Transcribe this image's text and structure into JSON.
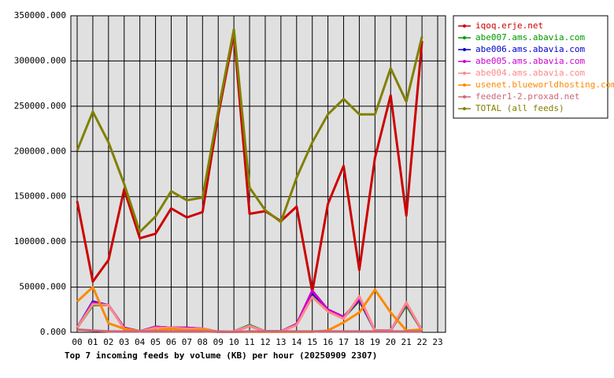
{
  "chart_data": {
    "type": "line",
    "xlabel": "Top 7 incoming feeds by volume (KB) per hour (20250909 2307)",
    "categories": [
      "00",
      "01",
      "02",
      "03",
      "04",
      "05",
      "06",
      "07",
      "08",
      "09",
      "10",
      "11",
      "12",
      "13",
      "14",
      "15",
      "16",
      "17",
      "18",
      "19",
      "20",
      "21",
      "22",
      "23"
    ],
    "ylim": [
      0,
      350000
    ],
    "yticks": [
      {
        "value": 0,
        "label": "0.000"
      },
      {
        "value": 50000,
        "label": "50000.000"
      },
      {
        "value": 100000,
        "label": "100000.000"
      },
      {
        "value": 150000,
        "label": "150000.000"
      },
      {
        "value": 200000,
        "label": "200000.000"
      },
      {
        "value": 250000,
        "label": "250000.000"
      },
      {
        "value": 300000,
        "label": "300000.000"
      },
      {
        "value": 350000,
        "label": "350000.000"
      }
    ],
    "grid": true,
    "legend": "right",
    "series": [
      {
        "name": "iqoq.erje.net",
        "color": "#cc0000",
        "values": [
          145000,
          56000,
          80000,
          158000,
          104000,
          109000,
          137000,
          127000,
          133000,
          240000,
          330000,
          131000,
          134000,
          123000,
          139000,
          45000,
          142000,
          184000,
          69000,
          193000,
          262000,
          129000,
          322000,
          null
        ]
      },
      {
        "name": "abe007.ams.abavia.com",
        "color": "#009900",
        "values": [
          5000,
          30000,
          30000,
          5000,
          1000,
          6000,
          5000,
          4000,
          4000,
          500,
          1000,
          8000,
          1000,
          1000,
          9000,
          41000,
          24000,
          16000,
          35000,
          2000,
          2000,
          30000,
          2000,
          null
        ]
      },
      {
        "name": "abe006.ams.abavia.com",
        "color": "#0000cc",
        "values": [
          5000,
          34000,
          30000,
          5000,
          1000,
          6000,
          5000,
          5000,
          4000,
          500,
          1000,
          7000,
          1000,
          1000,
          9000,
          44000,
          25000,
          17000,
          36000,
          2000,
          2000,
          32000,
          2000,
          null
        ]
      },
      {
        "name": "abe005.ams.abavia.com",
        "color": "#cc00cc",
        "values": [
          5000,
          33000,
          30000,
          5000,
          1000,
          6000,
          5000,
          5000,
          4000,
          500,
          1000,
          7000,
          1000,
          1000,
          9000,
          46000,
          25000,
          17000,
          37000,
          2000,
          2000,
          32000,
          2000,
          null
        ]
      },
      {
        "name": "abe004.ams.abavia.com",
        "color": "#ff8888",
        "values": [
          5000,
          31000,
          30000,
          4000,
          1000,
          5000,
          5000,
          4000,
          4000,
          500,
          1000,
          7000,
          1000,
          1000,
          8000,
          39000,
          23000,
          15000,
          40000,
          2000,
          2000,
          33000,
          2000,
          null
        ]
      },
      {
        "name": "usenet.blueworldhosting.com",
        "color": "#ff8800",
        "values": [
          34000,
          50000,
          10000,
          4000,
          1000,
          2000,
          4000,
          2000,
          3000,
          500,
          500,
          500,
          500,
          500,
          500,
          500,
          2000,
          11000,
          22000,
          47000,
          22000,
          2000,
          3000,
          null
        ]
      },
      {
        "name": "feeder1-2.proxad.net",
        "color": "#cc6677",
        "values": [
          3000,
          2000,
          1000,
          1000,
          1000,
          1000,
          1000,
          1000,
          1000,
          500,
          500,
          1000,
          1000,
          1000,
          1000,
          1000,
          1000,
          1000,
          1000,
          1000,
          1000,
          1000,
          1000,
          null
        ]
      },
      {
        "name": "TOTAL (all feeds)",
        "color": "#808000",
        "values": [
          201000,
          244000,
          210000,
          164000,
          111000,
          128000,
          156000,
          146000,
          149000,
          245000,
          335000,
          160000,
          135000,
          122000,
          171000,
          210000,
          241000,
          258000,
          241000,
          241000,
          292000,
          255000,
          327000,
          null
        ]
      }
    ]
  }
}
